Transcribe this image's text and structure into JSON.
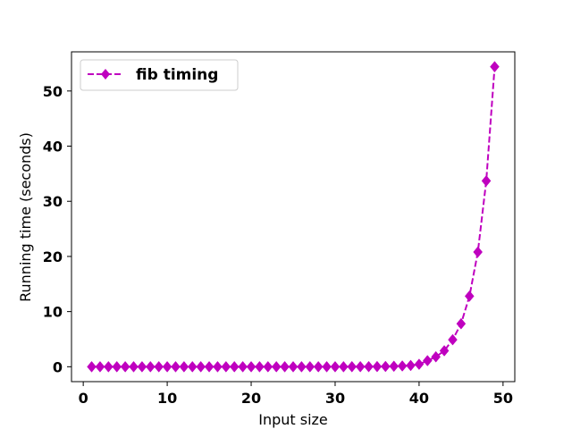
{
  "chart_data": {
    "type": "line",
    "title": "",
    "xlabel": "Input size",
    "ylabel": "Running time (seconds)",
    "xlim": [
      -1.4,
      51.4
    ],
    "ylim": [
      -2.7,
      57.1
    ],
    "xticks": [
      0,
      10,
      20,
      30,
      40,
      50
    ],
    "yticks": [
      0,
      10,
      20,
      30,
      40,
      50
    ],
    "grid": false,
    "legend_position": "top-left",
    "series": [
      {
        "name": "fib timing",
        "color": "#bf00bf",
        "line_style": "dashed",
        "marker": "diamond",
        "x": [
          1,
          2,
          3,
          4,
          5,
          6,
          7,
          8,
          9,
          10,
          11,
          12,
          13,
          14,
          15,
          16,
          17,
          18,
          19,
          20,
          21,
          22,
          23,
          24,
          25,
          26,
          27,
          28,
          29,
          30,
          31,
          32,
          33,
          34,
          35,
          36,
          37,
          38,
          39,
          40,
          41,
          42,
          43,
          44,
          45,
          46,
          47,
          48,
          49
        ],
        "y": [
          0,
          0,
          0,
          0,
          0,
          0,
          0,
          0,
          0,
          0,
          0,
          0,
          0,
          0,
          0,
          0,
          0,
          0,
          0,
          0,
          0,
          0,
          0,
          0,
          0,
          0,
          0,
          0,
          0,
          0,
          0,
          0.01,
          0.01,
          0.02,
          0.03,
          0.05,
          0.09,
          0.14,
          0.23,
          0.45,
          1.1,
          1.8,
          2.9,
          4.9,
          7.8,
          12.8,
          20.8,
          33.7,
          54.4
        ]
      }
    ]
  }
}
